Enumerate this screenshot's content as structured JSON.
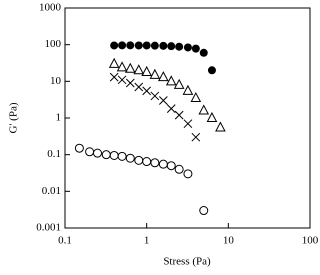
{
  "chart_data": {
    "type": "scatter",
    "x_label": "Stress (Pa)",
    "y_label": "G' (Pa)",
    "xscale": "log",
    "yscale": "log",
    "xlim": [
      0.1,
      100
    ],
    "ylim": [
      0.001,
      1000
    ],
    "xticks": [
      0.1,
      1,
      10,
      100
    ],
    "yticks": [
      0.001,
      0.01,
      0.1,
      1,
      10,
      100,
      1000
    ],
    "series": [
      {
        "marker": "filled-circle",
        "color": "#000000",
        "x": [
          0.4,
          0.5,
          0.63,
          0.8,
          1,
          1.26,
          1.6,
          2,
          2.5,
          3.2,
          4,
          5,
          6.3
        ],
        "values": [
          95,
          96,
          96,
          95,
          95,
          94,
          93,
          91,
          88,
          84,
          78,
          60,
          20
        ]
      },
      {
        "marker": "open-triangle",
        "color": "#000000",
        "x": [
          0.4,
          0.5,
          0.63,
          0.8,
          1,
          1.26,
          1.6,
          2,
          2.5,
          3.2,
          4,
          5,
          6.3,
          8
        ],
        "values": [
          30,
          24,
          22,
          20,
          18,
          15,
          13,
          10,
          8,
          5.5,
          3.5,
          1.6,
          1,
          0.55
        ]
      },
      {
        "marker": "cross",
        "color": "#000000",
        "x": [
          0.4,
          0.5,
          0.63,
          0.8,
          1,
          1.26,
          1.6,
          2,
          2.5,
          3.2,
          4
        ],
        "values": [
          13,
          11,
          9,
          7,
          5.5,
          4,
          3,
          1.8,
          1.2,
          0.7,
          0.3
        ]
      },
      {
        "marker": "open-circle",
        "color": "#000000",
        "x": [
          0.15,
          0.2,
          0.25,
          0.32,
          0.4,
          0.5,
          0.63,
          0.8,
          1,
          1.26,
          1.6,
          2,
          2.5,
          3.2,
          5
        ],
        "values": [
          0.15,
          0.12,
          0.11,
          0.1,
          0.095,
          0.09,
          0.08,
          0.07,
          0.065,
          0.06,
          0.055,
          0.05,
          0.04,
          0.03,
          0.003
        ]
      }
    ]
  }
}
